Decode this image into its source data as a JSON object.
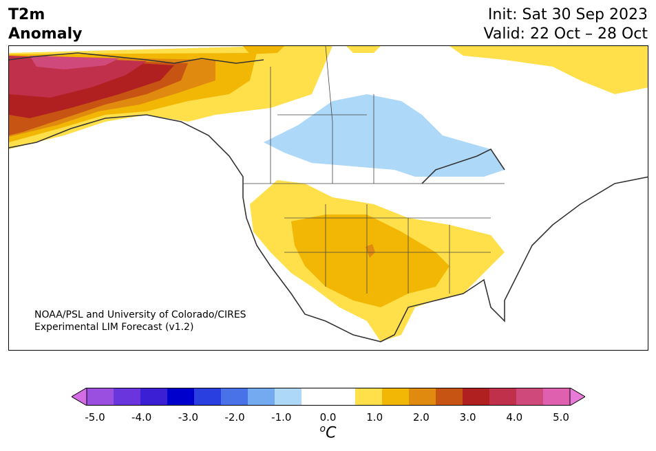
{
  "title": {
    "left_line1": "T2m",
    "left_line2": "Anomaly",
    "init": "Init: Sat 30 Sep 2023",
    "valid": "Valid: 22 Oct – 28 Oct"
  },
  "credit": {
    "line1": "NOAA/PSL and University of Colorado/CIRES",
    "line2": "Experimental LIM Forecast (v1.2)"
  },
  "colorbar": {
    "unit_sup": "o",
    "unit_main": "C",
    "ticks": [
      "-5.0",
      "-4.0",
      "-3.0",
      "-2.0",
      "-1.0",
      "0.0",
      "1.0",
      "2.0",
      "3.0",
      "4.0",
      "5.0"
    ],
    "colors": [
      "#d46ce8",
      "#9b4fe0",
      "#6a35dc",
      "#3a1fd4",
      "#0000cc",
      "#2a3fe0",
      "#4a72e8",
      "#74aaf0",
      "#aed8f8",
      "#ffffff",
      "#ffffff",
      "#ffe04a",
      "#f2b705",
      "#e08a10",
      "#c85414",
      "#b02020",
      "#c0304a",
      "#cf4a7a",
      "#e060b0",
      "#e87ad8"
    ]
  },
  "map": {
    "land_color": "#ffffff",
    "ocean_color": "#ffffff",
    "coast_color": "#333333"
  }
}
